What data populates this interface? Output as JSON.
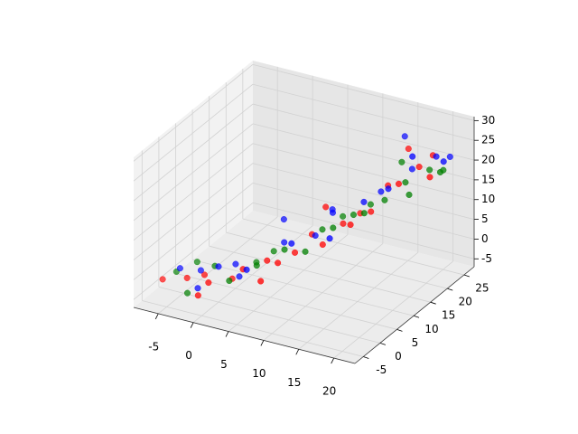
{
  "chart_data": {
    "type": "scatter3d",
    "xlim": [
      -8.5,
      23
    ],
    "ylim": [
      -7.5,
      28
    ],
    "zlim": [
      -7,
      31
    ],
    "xticks": [
      -5,
      0,
      5,
      10,
      15,
      20
    ],
    "yticks": [
      -5,
      0,
      5,
      10,
      15,
      20,
      25
    ],
    "zticks": [
      -5,
      0,
      5,
      10,
      15,
      20,
      25,
      30
    ],
    "grid": true,
    "series": [
      {
        "color": "#ff0000",
        "x": [
          -7,
          -4,
          -2,
          0,
          1,
          3,
          5,
          6,
          8,
          9,
          11,
          12,
          14,
          15,
          16,
          18,
          19,
          20,
          21,
          17,
          13,
          7,
          -1,
          10
        ],
        "y": [
          -2,
          -1,
          0,
          -3,
          2,
          1,
          4,
          0,
          6,
          9,
          8,
          12,
          10,
          14,
          17,
          16,
          20,
          22,
          19,
          21,
          15,
          3,
          -4,
          11
        ],
        "z": [
          -3,
          -2,
          -1,
          0,
          -2,
          2,
          3,
          1,
          5,
          8,
          7,
          10,
          12,
          13,
          18,
          20,
          22,
          24,
          21,
          25,
          11,
          4,
          -3,
          14
        ]
      },
      {
        "color": "#008000",
        "x": [
          -6,
          -3,
          -1,
          2,
          4,
          5,
          7,
          9,
          10,
          12,
          13,
          15,
          16,
          18,
          19,
          20,
          22,
          21,
          17,
          3,
          -4,
          11,
          14
        ],
        "y": [
          0,
          -3,
          1,
          -1,
          3,
          6,
          5,
          7,
          10,
          9,
          13,
          12,
          16,
          18,
          17,
          21,
          20,
          23,
          19,
          5,
          2,
          14,
          16
        ],
        "z": [
          -2,
          -4,
          1,
          0,
          2,
          4,
          6,
          5,
          9,
          11,
          12,
          14,
          15,
          19,
          17,
          21,
          22,
          20,
          23,
          1,
          0,
          10,
          13
        ]
      },
      {
        "color": "#0000ff",
        "x": [
          -5,
          -3,
          -2,
          0,
          1,
          2,
          4,
          6,
          8,
          9,
          11,
          12,
          14,
          15,
          17,
          18,
          19,
          20,
          22,
          21,
          16,
          5,
          10
        ],
        "y": [
          -1,
          1,
          -2,
          0,
          3,
          2,
          0,
          7,
          5,
          10,
          11,
          8,
          14,
          17,
          15,
          20,
          18,
          23,
          21,
          25,
          22,
          9,
          13
        ],
        "z": [
          0,
          -1,
          -3,
          2,
          1,
          -1,
          3,
          6,
          8,
          7,
          13,
          9,
          15,
          16,
          19,
          21,
          26,
          23,
          24,
          22,
          27,
          10,
          12
        ]
      }
    ]
  }
}
